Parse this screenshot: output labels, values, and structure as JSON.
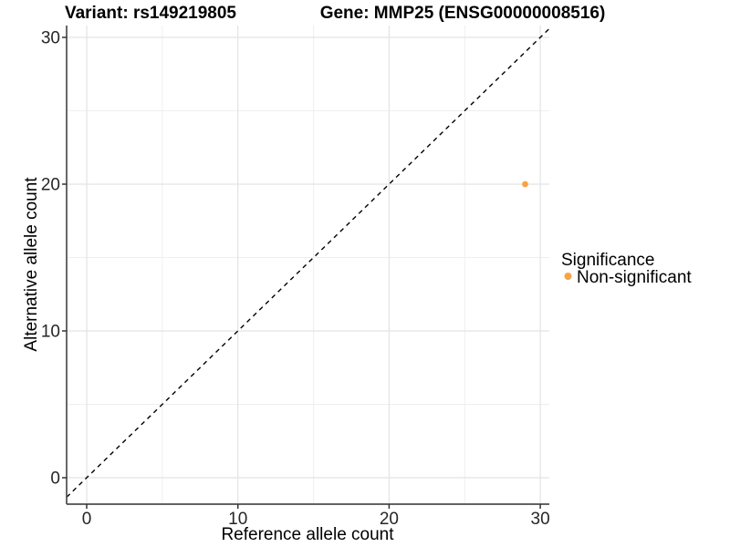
{
  "chart_data": {
    "type": "scatter",
    "title_left": "Variant: rs149219805",
    "title_right": "Gene: MMP25 (ENSG00000008516)",
    "xlabel": "Reference allele count",
    "ylabel": "Alternative allele count",
    "x_range": [
      0,
      30
    ],
    "y_range": [
      0,
      30
    ],
    "x_ticks": [
      0,
      10,
      20,
      30
    ],
    "x_minor_ticks": [
      5,
      15,
      25
    ],
    "y_ticks": [
      0,
      10,
      20,
      30
    ],
    "y_minor_ticks": [
      5,
      15,
      25
    ],
    "grid": "major-and-minor",
    "points": [
      {
        "x": 29,
        "y": 20,
        "significance": "Non-significant"
      }
    ],
    "reference_line": {
      "type": "identity",
      "slope": 1,
      "intercept": 0,
      "line_style": "dashed",
      "color": "#000000"
    },
    "legend": {
      "position": "right",
      "title": "Significance",
      "entries": [
        {
          "label": "Non-significant",
          "color": "#F7A446"
        }
      ]
    },
    "colors": {
      "point": "#F7A446",
      "grid_major": "#E3E3E3",
      "grid_minor": "#EFEFEF",
      "axis_line": "#4D4D4D",
      "tick_mark": "#333333",
      "background": "#FFFFFF",
      "title_text": "#000000",
      "tick_text": "#262626"
    }
  }
}
